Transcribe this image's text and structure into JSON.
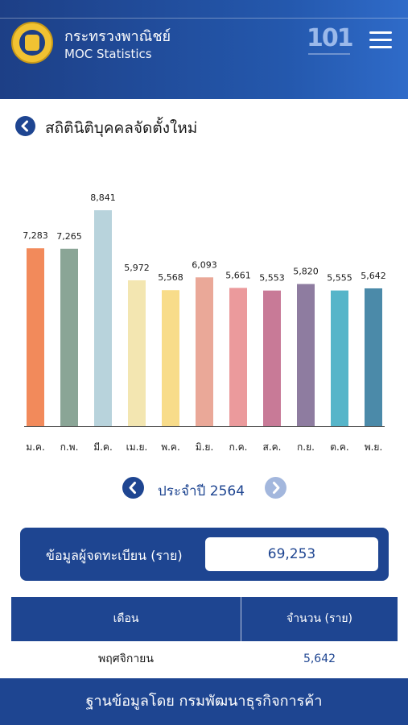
{
  "header": {
    "org_name_th": "กระทรวงพาณิชย์",
    "org_name_en": "MOC Statistics",
    "badge_text": "101",
    "menu_icon": "hamburger-menu-icon"
  },
  "page": {
    "title": "สถิตินิติบุคคลจัดตั้งใหม่",
    "back_icon": "chevron-left-icon"
  },
  "chart_data": {
    "type": "bar",
    "categories": [
      "ม.ค.",
      "ก.พ.",
      "มี.ค.",
      "เม.ย.",
      "พ.ค.",
      "มิ.ย.",
      "ก.ค.",
      "ส.ค.",
      "ก.ย.",
      "ต.ค.",
      "พ.ย."
    ],
    "values": [
      7283,
      7265,
      8841,
      5972,
      5568,
      6093,
      5661,
      5553,
      5820,
      5555,
      5642
    ],
    "value_labels": [
      "7,283",
      "7,265",
      "8,841",
      "5,972",
      "5,568",
      "6,093",
      "5,661",
      "5,553",
      "5,820",
      "5,555",
      "5,642"
    ],
    "colors": [
      "#f28a5b",
      "#8aa596",
      "#b8d3dc",
      "#f3e6b1",
      "#f8dc8a",
      "#eaa898",
      "#eb9a9c",
      "#c87a97",
      "#8e7ca0",
      "#56b5c9",
      "#4b8aa9"
    ],
    "ylim": [
      0,
      8841
    ],
    "grid": false
  },
  "year_nav": {
    "label": "ประจำปี  2564",
    "prev_icon": "chevron-left-icon",
    "next_icon": "chevron-right-icon"
  },
  "summary": {
    "label": "ข้อมูลผู้จดทะเบียน (ราย)",
    "value": "69,253"
  },
  "table": {
    "headers": [
      "เดือน",
      "จำนวน (ราย)"
    ],
    "rows": [
      {
        "month": "พฤศจิกายน",
        "count": "5,642"
      }
    ]
  },
  "footer": {
    "text": "ฐานข้อมูลโดย กรมพัฒนาธุรกิจการค้า"
  },
  "colors": {
    "primary": "#1e4591",
    "header_gradient_end": "#2f6bc9",
    "next_disabled": "#a3b7dd"
  }
}
